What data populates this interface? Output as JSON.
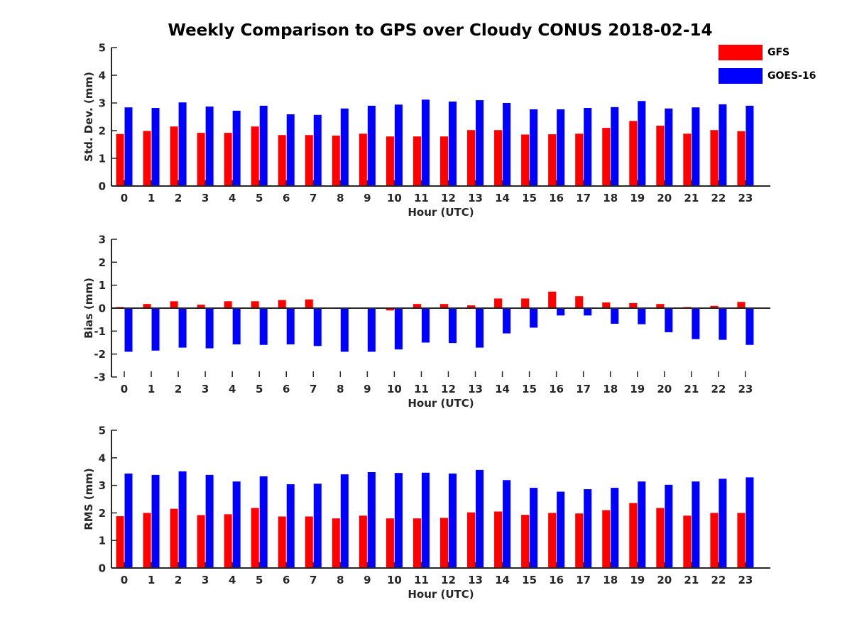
{
  "figure": {
    "title": "Weekly Comparison to GPS over Cloudy CONUS 2018-02-14"
  },
  "legend": {
    "items": [
      {
        "label": "GFS",
        "color": "#ff0000"
      },
      {
        "label": "GOES-16",
        "color": "#0000ff"
      }
    ]
  },
  "chart_data": [
    {
      "type": "bar",
      "xlabel": "Hour (UTC)",
      "ylabel": "Std. Dev. (mm)",
      "ylim": [
        0,
        5
      ],
      "yticks": [
        0,
        1,
        2,
        3,
        4,
        5
      ],
      "categories": [
        "0",
        "1",
        "2",
        "3",
        "4",
        "5",
        "6",
        "7",
        "8",
        "9",
        "10",
        "11",
        "12",
        "13",
        "14",
        "15",
        "16",
        "17",
        "18",
        "19",
        "20",
        "21",
        "22",
        "23"
      ],
      "series": [
        {
          "name": "GFS",
          "color": "#ff0000",
          "values": [
            1.88,
            1.99,
            2.15,
            1.92,
            1.92,
            2.15,
            1.84,
            1.84,
            1.82,
            1.89,
            1.79,
            1.79,
            1.79,
            2.02,
            2.02,
            1.86,
            1.87,
            1.89,
            2.1,
            2.35,
            2.18,
            1.89,
            2.02,
            1.98
          ]
        },
        {
          "name": "GOES-16",
          "color": "#0000ff",
          "values": [
            2.84,
            2.82,
            3.02,
            2.87,
            2.72,
            2.9,
            2.59,
            2.57,
            2.8,
            2.9,
            2.94,
            3.12,
            3.05,
            3.1,
            3.0,
            2.77,
            2.77,
            2.82,
            2.85,
            3.07,
            2.8,
            2.84,
            2.95,
            2.9
          ]
        }
      ]
    },
    {
      "type": "bar",
      "xlabel": "Hour (UTC)",
      "ylabel": "Bias (mm)",
      "ylim": [
        -3,
        3
      ],
      "yticks": [
        -3,
        -2,
        -1,
        0,
        1,
        2,
        3
      ],
      "categories": [
        "0",
        "1",
        "2",
        "3",
        "4",
        "5",
        "6",
        "7",
        "8",
        "9",
        "10",
        "11",
        "12",
        "13",
        "14",
        "15",
        "16",
        "17",
        "18",
        "19",
        "20",
        "21",
        "22",
        "23"
      ],
      "series": [
        {
          "name": "GFS",
          "color": "#ff0000",
          "values": [
            0.05,
            0.18,
            0.3,
            0.15,
            0.3,
            0.3,
            0.35,
            0.38,
            0.02,
            -0.02,
            -0.1,
            0.18,
            0.18,
            0.12,
            0.42,
            0.42,
            0.72,
            0.52,
            0.25,
            0.22,
            0.18,
            0.05,
            0.1,
            0.27
          ]
        },
        {
          "name": "GOES-16",
          "color": "#0000ff",
          "values": [
            -1.9,
            -1.85,
            -1.72,
            -1.75,
            -1.58,
            -1.6,
            -1.58,
            -1.65,
            -1.9,
            -1.9,
            -1.8,
            -1.5,
            -1.52,
            -1.72,
            -1.1,
            -0.85,
            -0.32,
            -0.32,
            -0.68,
            -0.7,
            -1.05,
            -1.35,
            -1.38,
            -1.6
          ]
        }
      ]
    },
    {
      "type": "bar",
      "xlabel": "Hour (UTC)",
      "ylabel": "RMS (mm)",
      "ylim": [
        0,
        5
      ],
      "yticks": [
        0,
        1,
        2,
        3,
        4,
        5
      ],
      "categories": [
        "0",
        "1",
        "2",
        "3",
        "4",
        "5",
        "6",
        "7",
        "8",
        "9",
        "10",
        "11",
        "12",
        "13",
        "14",
        "15",
        "16",
        "17",
        "18",
        "19",
        "20",
        "21",
        "22",
        "23"
      ],
      "series": [
        {
          "name": "GFS",
          "color": "#ff0000",
          "values": [
            1.88,
            2.0,
            2.15,
            1.92,
            1.95,
            2.18,
            1.87,
            1.87,
            1.8,
            1.9,
            1.8,
            1.8,
            1.82,
            2.02,
            2.05,
            1.93,
            2.0,
            1.98,
            2.1,
            2.36,
            2.18,
            1.9,
            2.0,
            2.0
          ]
        },
        {
          "name": "GOES-16",
          "color": "#0000ff",
          "values": [
            3.43,
            3.38,
            3.51,
            3.38,
            3.14,
            3.33,
            3.04,
            3.06,
            3.4,
            3.48,
            3.45,
            3.46,
            3.43,
            3.56,
            3.19,
            2.91,
            2.77,
            2.86,
            2.91,
            3.14,
            3.02,
            3.14,
            3.24,
            3.29
          ]
        }
      ]
    }
  ]
}
